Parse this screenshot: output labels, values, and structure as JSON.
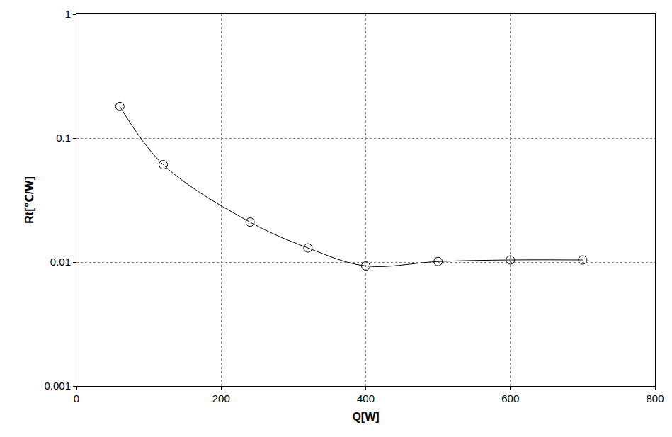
{
  "chart_data": {
    "type": "line",
    "x_label": "Q[W]",
    "y_label": "Rt[℃/W]",
    "x": [
      60,
      120,
      240,
      320,
      400,
      500,
      600,
      700
    ],
    "values": [
      0.18,
      0.061,
      0.021,
      0.013,
      0.0093,
      0.0101,
      0.0104,
      0.0104
    ],
    "color": "#000000",
    "marker": "circle-open",
    "line_style": "solid",
    "xlim": [
      0,
      800
    ],
    "xticks": [
      0,
      200,
      400,
      600,
      800
    ],
    "ylim": [
      0.001,
      1
    ],
    "yticks": [
      0.001,
      0.01,
      0.1,
      1
    ],
    "log": "y",
    "grid": true
  }
}
